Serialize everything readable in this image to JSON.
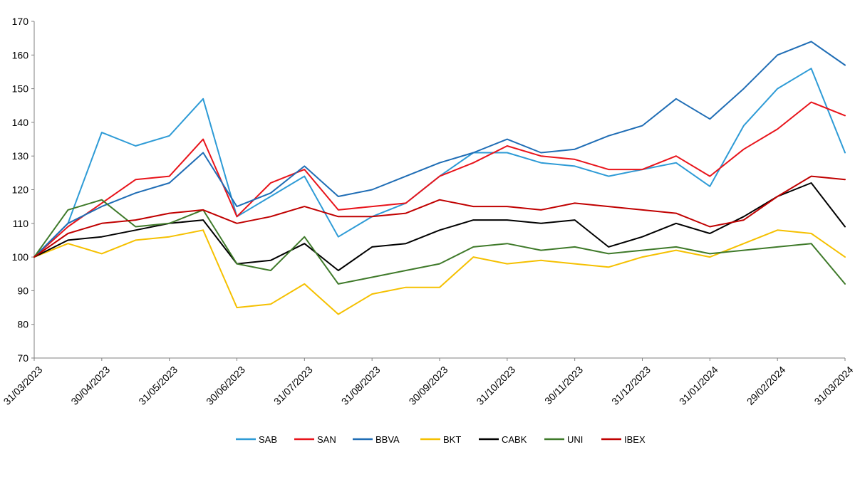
{
  "chart_data": {
    "type": "line",
    "title": "",
    "xlabel": "",
    "ylabel": "",
    "ylim": [
      70,
      170
    ],
    "yticks": [
      70,
      80,
      90,
      100,
      110,
      120,
      130,
      140,
      150,
      160,
      170
    ],
    "xticks": [
      "31/03/2023",
      "30/04/2023",
      "31/05/2023",
      "30/06/2023",
      "31/07/2023",
      "31/08/2023",
      "30/09/2023",
      "31/10/2023",
      "30/11/2023",
      "31/12/2023",
      "31/01/2024",
      "29/02/2024",
      "31/03/2024"
    ],
    "grid": false,
    "legend": "bottom",
    "x": [
      "31/03/2023",
      "15/04/2023",
      "30/04/2023",
      "15/05/2023",
      "31/05/2023",
      "15/06/2023",
      "30/06/2023",
      "15/07/2023",
      "31/07/2023",
      "15/08/2023",
      "31/08/2023",
      "15/09/2023",
      "30/09/2023",
      "15/10/2023",
      "31/10/2023",
      "15/11/2023",
      "30/11/2023",
      "15/12/2023",
      "31/12/2023",
      "15/01/2024",
      "31/01/2024",
      "15/02/2024",
      "29/02/2024",
      "15/03/2024",
      "31/03/2024"
    ],
    "series": [
      {
        "name": "SAB",
        "color": "#2E9BD6",
        "values": [
          100,
          110,
          137,
          133,
          136,
          147,
          112,
          118,
          124,
          106,
          112,
          116,
          124,
          131,
          131,
          128,
          127,
          124,
          126,
          128,
          121,
          139,
          150,
          156,
          131
        ]
      },
      {
        "name": "SAN",
        "color": "#E8141B",
        "values": [
          100,
          109,
          116,
          123,
          124,
          135,
          112,
          122,
          126,
          114,
          115,
          116,
          124,
          128,
          133,
          130,
          129,
          126,
          126,
          130,
          124,
          132,
          138,
          146,
          142
        ]
      },
      {
        "name": "BBVA",
        "color": "#1F6DB5",
        "values": [
          100,
          110,
          115,
          119,
          122,
          131,
          115,
          119,
          127,
          118,
          120,
          124,
          128,
          131,
          135,
          131,
          132,
          136,
          139,
          147,
          141,
          150,
          160,
          164,
          157
        ]
      },
      {
        "name": "BKT",
        "color": "#F5C000",
        "values": [
          100,
          104,
          101,
          105,
          106,
          108,
          85,
          86,
          92,
          83,
          89,
          91,
          91,
          100,
          98,
          99,
          98,
          97,
          100,
          102,
          100,
          104,
          108,
          107,
          100
        ]
      },
      {
        "name": "CABK",
        "color": "#000000",
        "values": [
          100,
          105,
          106,
          108,
          110,
          111,
          98,
          99,
          104,
          96,
          103,
          104,
          108,
          111,
          111,
          110,
          111,
          103,
          106,
          110,
          107,
          112,
          118,
          122,
          109
        ]
      },
      {
        "name": "UNI",
        "color": "#3F7A2A",
        "values": [
          100,
          114,
          117,
          109,
          110,
          114,
          98,
          96,
          106,
          92,
          94,
          96,
          98,
          103,
          104,
          102,
          103,
          101,
          102,
          103,
          101,
          102,
          103,
          104,
          92
        ]
      },
      {
        "name": "IBEX",
        "color": "#C00000",
        "values": [
          100,
          107,
          110,
          111,
          113,
          114,
          110,
          112,
          115,
          112,
          112,
          113,
          117,
          115,
          115,
          114,
          116,
          115,
          114,
          113,
          109,
          111,
          118,
          124,
          123
        ]
      }
    ]
  }
}
